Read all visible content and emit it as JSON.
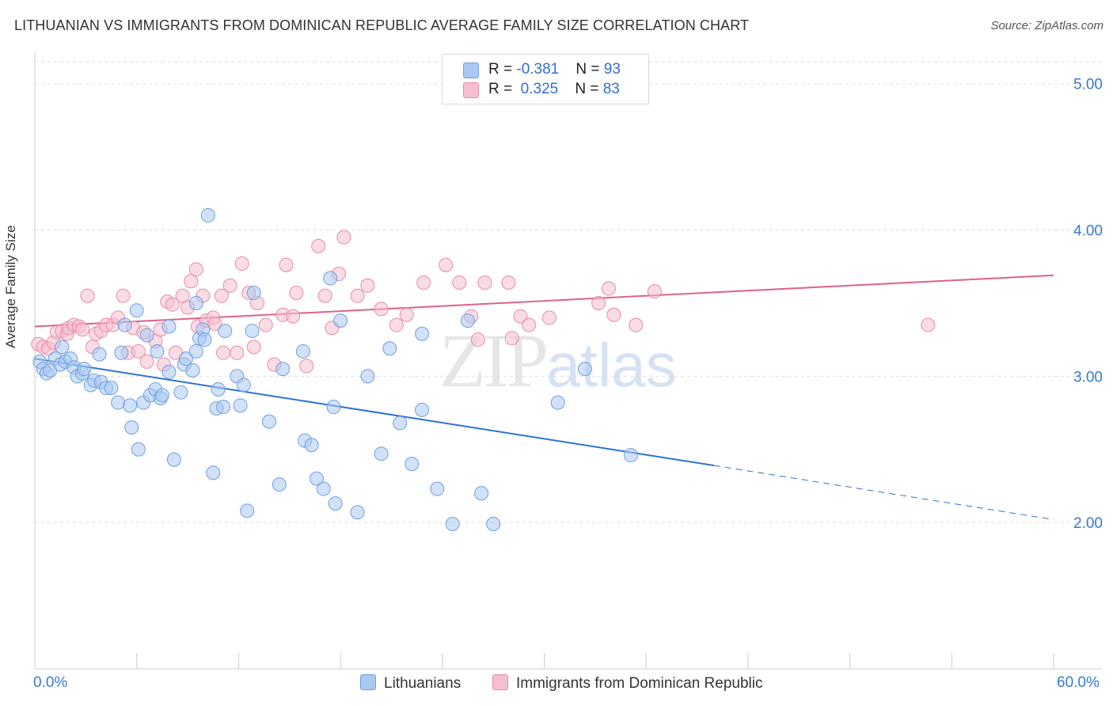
{
  "title": "LITHUANIAN VS IMMIGRANTS FROM DOMINICAN REPUBLIC AVERAGE FAMILY SIZE CORRELATION CHART",
  "source": "Source: ZipAtlas.com",
  "watermark": {
    "zip": "ZIP",
    "atlas": "atlas"
  },
  "legend": {
    "rows": [
      {
        "r_label": "R = ",
        "r_value": "-0.381",
        "n_label": "N = ",
        "n_value": "93"
      },
      {
        "r_label": "R = ",
        "r_value": " 0.325",
        "n_label": "N = ",
        "n_value": "83"
      }
    ]
  },
  "bottom_legend": {
    "series1": "Lithuanians",
    "series2": "Immigrants from Dominican Republic"
  },
  "colors": {
    "blue_fill": "#a9c8f2",
    "blue_stroke": "#6f9fe0",
    "blue_line": "#2e72d2",
    "pink_fill": "#f6bfd0",
    "pink_stroke": "#e88aa8",
    "pink_line": "#e0608a",
    "axis_text": "#3a78d4",
    "grid": "#dddddd"
  },
  "chart_data": {
    "type": "scatter",
    "title": "LITHUANIAN VS IMMIGRANTS FROM DOMINICAN REPUBLIC AVERAGE FAMILY SIZE CORRELATION CHART",
    "xlabel": "",
    "ylabel": "Average Family Size",
    "xlim": [
      0,
      60
    ],
    "ylim": [
      1.0,
      5.15
    ],
    "x_tick_labels": [
      "0.0%",
      "60.0%"
    ],
    "y_ticks": [
      2.0,
      3.0,
      4.0,
      5.0
    ],
    "y_tick_labels": [
      "2.00",
      "3.00",
      "4.00",
      "5.00"
    ],
    "grid": true,
    "series": [
      {
        "name": "Lithuanians",
        "color": "#a9c8f2",
        "trend": {
          "x0": 0,
          "y0": 3.12,
          "x1": 40,
          "y1": 2.39,
          "dashed_to_x": 60,
          "dashed_to_y": 2.02
        },
        "points": [
          [
            0.3,
            3.1
          ],
          [
            0.5,
            3.05
          ],
          [
            0.7,
            3.02
          ],
          [
            0.9,
            3.04
          ],
          [
            1.2,
            3.12
          ],
          [
            1.5,
            3.08
          ],
          [
            1.6,
            3.2
          ],
          [
            1.8,
            3.1
          ],
          [
            2.1,
            3.12
          ],
          [
            2.3,
            3.06
          ],
          [
            2.5,
            3.0
          ],
          [
            2.8,
            3.02
          ],
          [
            2.9,
            3.05
          ],
          [
            3.3,
            2.94
          ],
          [
            3.5,
            2.97
          ],
          [
            3.8,
            3.15
          ],
          [
            3.9,
            2.96
          ],
          [
            4.2,
            2.92
          ],
          [
            4.5,
            2.92
          ],
          [
            4.9,
            2.82
          ],
          [
            5.1,
            3.16
          ],
          [
            5.3,
            3.35
          ],
          [
            5.6,
            2.8
          ],
          [
            5.7,
            2.65
          ],
          [
            6.0,
            3.45
          ],
          [
            6.1,
            2.5
          ],
          [
            6.4,
            2.82
          ],
          [
            6.6,
            3.28
          ],
          [
            6.8,
            2.87
          ],
          [
            7.1,
            2.91
          ],
          [
            7.2,
            3.17
          ],
          [
            7.4,
            2.85
          ],
          [
            7.5,
            2.87
          ],
          [
            7.9,
            3.34
          ],
          [
            7.9,
            3.03
          ],
          [
            8.2,
            2.43
          ],
          [
            8.6,
            2.89
          ],
          [
            8.8,
            3.08
          ],
          [
            8.9,
            3.12
          ],
          [
            9.3,
            3.04
          ],
          [
            9.5,
            3.5
          ],
          [
            9.5,
            3.17
          ],
          [
            9.7,
            3.26
          ],
          [
            9.9,
            3.32
          ],
          [
            10.0,
            3.25
          ],
          [
            10.2,
            4.1
          ],
          [
            10.5,
            2.34
          ],
          [
            10.7,
            2.78
          ],
          [
            10.8,
            2.91
          ],
          [
            11.1,
            2.79
          ],
          [
            11.2,
            3.31
          ],
          [
            11.9,
            3.0
          ],
          [
            12.1,
            2.8
          ],
          [
            12.3,
            2.94
          ],
          [
            12.5,
            2.08
          ],
          [
            12.8,
            3.31
          ],
          [
            12.9,
            3.57
          ],
          [
            13.8,
            2.69
          ],
          [
            14.4,
            2.26
          ],
          [
            14.6,
            3.05
          ],
          [
            15.8,
            3.17
          ],
          [
            15.9,
            2.56
          ],
          [
            16.3,
            2.53
          ],
          [
            16.6,
            2.3
          ],
          [
            17.0,
            2.23
          ],
          [
            17.4,
            3.67
          ],
          [
            17.6,
            2.79
          ],
          [
            17.7,
            2.13
          ],
          [
            18.0,
            3.38
          ],
          [
            19.0,
            2.07
          ],
          [
            19.6,
            3.0
          ],
          [
            20.4,
            2.47
          ],
          [
            20.9,
            3.19
          ],
          [
            21.5,
            2.68
          ],
          [
            22.2,
            2.4
          ],
          [
            22.8,
            2.77
          ],
          [
            22.8,
            3.29
          ],
          [
            23.7,
            2.23
          ],
          [
            24.6,
            1.99
          ],
          [
            25.5,
            3.38
          ],
          [
            26.3,
            2.2
          ],
          [
            27.0,
            1.99
          ],
          [
            30.8,
            2.82
          ],
          [
            32.4,
            3.05
          ],
          [
            35.1,
            2.46
          ]
        ]
      },
      {
        "name": "Immigrants from Dominican Republic",
        "color": "#f6bfd0",
        "trend": {
          "x0": 0,
          "y0": 3.34,
          "x1": 60,
          "y1": 3.69
        },
        "points": [
          [
            0.2,
            3.22
          ],
          [
            0.5,
            3.2
          ],
          [
            0.8,
            3.19
          ],
          [
            1.1,
            3.23
          ],
          [
            1.3,
            3.3
          ],
          [
            1.6,
            3.31
          ],
          [
            1.9,
            3.29
          ],
          [
            2.0,
            3.33
          ],
          [
            2.3,
            3.35
          ],
          [
            2.6,
            3.34
          ],
          [
            2.8,
            3.32
          ],
          [
            3.1,
            3.55
          ],
          [
            3.4,
            3.2
          ],
          [
            3.6,
            3.29
          ],
          [
            3.9,
            3.31
          ],
          [
            4.2,
            3.35
          ],
          [
            4.6,
            3.35
          ],
          [
            4.9,
            3.4
          ],
          [
            5.2,
            3.55
          ],
          [
            5.5,
            3.16
          ],
          [
            5.8,
            3.33
          ],
          [
            6.1,
            3.17
          ],
          [
            6.4,
            3.3
          ],
          [
            6.6,
            3.1
          ],
          [
            7.1,
            3.24
          ],
          [
            7.4,
            3.32
          ],
          [
            7.6,
            3.08
          ],
          [
            7.8,
            3.51
          ],
          [
            8.1,
            3.49
          ],
          [
            8.3,
            3.16
          ],
          [
            8.7,
            3.55
          ],
          [
            9.0,
            3.47
          ],
          [
            9.2,
            3.65
          ],
          [
            9.5,
            3.73
          ],
          [
            9.6,
            3.34
          ],
          [
            9.9,
            3.55
          ],
          [
            10.1,
            3.38
          ],
          [
            10.5,
            3.4
          ],
          [
            10.6,
            3.36
          ],
          [
            11.0,
            3.55
          ],
          [
            11.1,
            3.16
          ],
          [
            11.5,
            3.62
          ],
          [
            11.9,
            3.16
          ],
          [
            12.2,
            3.77
          ],
          [
            12.6,
            3.57
          ],
          [
            12.9,
            3.2
          ],
          [
            13.1,
            3.5
          ],
          [
            13.6,
            3.35
          ],
          [
            14.1,
            3.08
          ],
          [
            14.6,
            3.42
          ],
          [
            14.8,
            3.76
          ],
          [
            15.2,
            3.41
          ],
          [
            15.4,
            3.57
          ],
          [
            16.0,
            3.07
          ],
          [
            16.7,
            3.89
          ],
          [
            17.1,
            3.55
          ],
          [
            17.5,
            3.33
          ],
          [
            17.9,
            3.7
          ],
          [
            18.2,
            3.95
          ],
          [
            19.0,
            3.55
          ],
          [
            19.6,
            3.62
          ],
          [
            20.4,
            3.46
          ],
          [
            21.3,
            3.35
          ],
          [
            21.9,
            3.42
          ],
          [
            22.9,
            3.64
          ],
          [
            24.2,
            3.76
          ],
          [
            25.0,
            3.64
          ],
          [
            25.7,
            3.41
          ],
          [
            26.1,
            3.25
          ],
          [
            26.5,
            3.64
          ],
          [
            27.9,
            3.64
          ],
          [
            28.1,
            3.26
          ],
          [
            28.6,
            3.41
          ],
          [
            29.1,
            3.35
          ],
          [
            30.3,
            3.4
          ],
          [
            33.2,
            3.5
          ],
          [
            33.8,
            3.6
          ],
          [
            34.1,
            3.42
          ],
          [
            35.4,
            3.35
          ],
          [
            36.5,
            3.58
          ],
          [
            52.6,
            3.35
          ]
        ]
      }
    ]
  }
}
